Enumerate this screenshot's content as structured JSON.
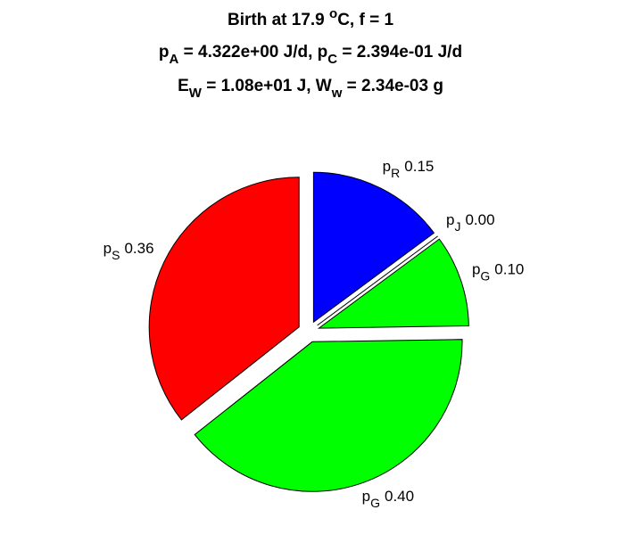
{
  "chart_data": {
    "type": "pie",
    "title": [
      [
        {
          "text": "Birth at 17.9 "
        },
        {
          "sup": "o"
        },
        {
          "text": "C, f = 1"
        }
      ],
      [
        {
          "text": "p"
        },
        {
          "sub": "A"
        },
        {
          "text": " = 4.322e+00 J/d, p"
        },
        {
          "sub": "C"
        },
        {
          "text": " = 2.394e-01 J/d"
        }
      ],
      [
        {
          "text": "E"
        },
        {
          "sub": "W"
        },
        {
          "text": " = 1.08e+01 J, W"
        },
        {
          "sub": "w"
        },
        {
          "text": " = 2.34e-03 g"
        }
      ]
    ],
    "labels": [
      {
        "base": "p",
        "sub": "R"
      },
      {
        "base": "p",
        "sub": "J"
      },
      {
        "base": "p",
        "sub": "G"
      },
      {
        "base": "p",
        "sub": "G"
      },
      {
        "base": "p",
        "sub": "S"
      }
    ],
    "values": [
      0.15,
      0.0,
      0.1,
      0.4,
      0.36
    ],
    "colors": [
      "#0000ff",
      "#00ffff",
      "#00ff00",
      "#00ff00",
      "#ff0000"
    ],
    "explode": true
  }
}
